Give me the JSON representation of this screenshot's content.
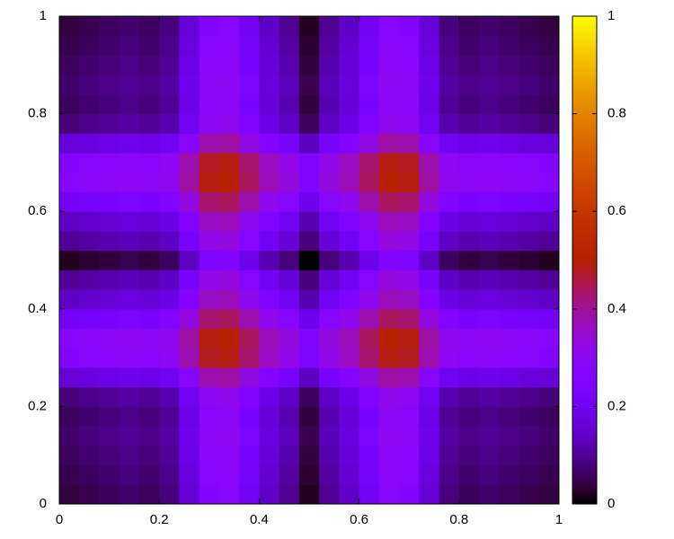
{
  "chart_data": {
    "type": "heatmap",
    "colormap": "gnuplot",
    "xlim": [
      0,
      1
    ],
    "ylim": [
      0,
      1
    ],
    "xticks": [
      0,
      0.2,
      0.4,
      0.6,
      0.8,
      1
    ],
    "yticks": [
      0,
      0.2,
      0.4,
      0.6,
      0.8,
      1
    ],
    "zlim": [
      0,
      1
    ],
    "zticks": [
      0,
      0.2,
      0.4,
      0.6,
      0.8,
      1
    ],
    "z": [
      [
        0.04,
        0.05,
        0.06,
        0.07,
        0.06,
        0.08,
        0.16,
        0.26,
        0.27,
        0.21,
        0.14,
        0.1,
        0.02,
        0.1,
        0.14,
        0.21,
        0.27,
        0.26,
        0.16,
        0.08,
        0.06,
        0.07,
        0.06,
        0.05,
        0.04
      ],
      [
        0.05,
        0.06,
        0.07,
        0.08,
        0.07,
        0.09,
        0.17,
        0.27,
        0.28,
        0.22,
        0.15,
        0.11,
        0.03,
        0.11,
        0.15,
        0.22,
        0.28,
        0.27,
        0.17,
        0.09,
        0.07,
        0.08,
        0.07,
        0.06,
        0.05
      ],
      [
        0.06,
        0.07,
        0.08,
        0.09,
        0.08,
        0.1,
        0.18,
        0.28,
        0.29,
        0.23,
        0.16,
        0.12,
        0.04,
        0.12,
        0.16,
        0.23,
        0.29,
        0.28,
        0.18,
        0.1,
        0.08,
        0.09,
        0.08,
        0.07,
        0.06
      ],
      [
        0.07,
        0.08,
        0.09,
        0.1,
        0.09,
        0.11,
        0.19,
        0.29,
        0.3,
        0.24,
        0.17,
        0.13,
        0.05,
        0.13,
        0.17,
        0.24,
        0.3,
        0.29,
        0.19,
        0.11,
        0.09,
        0.1,
        0.09,
        0.08,
        0.07
      ],
      [
        0.06,
        0.07,
        0.08,
        0.09,
        0.08,
        0.1,
        0.18,
        0.28,
        0.29,
        0.23,
        0.16,
        0.12,
        0.04,
        0.12,
        0.16,
        0.23,
        0.29,
        0.28,
        0.18,
        0.1,
        0.08,
        0.09,
        0.08,
        0.07,
        0.06
      ],
      [
        0.08,
        0.09,
        0.1,
        0.11,
        0.1,
        0.12,
        0.2,
        0.3,
        0.31,
        0.25,
        0.18,
        0.14,
        0.06,
        0.14,
        0.18,
        0.25,
        0.31,
        0.3,
        0.2,
        0.12,
        0.1,
        0.11,
        0.1,
        0.09,
        0.08
      ],
      [
        0.16,
        0.17,
        0.18,
        0.19,
        0.18,
        0.2,
        0.28,
        0.38,
        0.39,
        0.33,
        0.26,
        0.22,
        0.14,
        0.22,
        0.26,
        0.33,
        0.39,
        0.38,
        0.28,
        0.2,
        0.18,
        0.19,
        0.18,
        0.17,
        0.16
      ],
      [
        0.26,
        0.27,
        0.28,
        0.29,
        0.28,
        0.3,
        0.38,
        0.48,
        0.49,
        0.43,
        0.36,
        0.32,
        0.24,
        0.32,
        0.36,
        0.43,
        0.49,
        0.48,
        0.38,
        0.3,
        0.28,
        0.29,
        0.28,
        0.27,
        0.26
      ],
      [
        0.27,
        0.28,
        0.29,
        0.3,
        0.29,
        0.31,
        0.39,
        0.49,
        0.5,
        0.44,
        0.37,
        0.33,
        0.25,
        0.33,
        0.37,
        0.44,
        0.5,
        0.49,
        0.39,
        0.31,
        0.29,
        0.3,
        0.29,
        0.28,
        0.27
      ],
      [
        0.21,
        0.22,
        0.23,
        0.24,
        0.23,
        0.25,
        0.33,
        0.43,
        0.44,
        0.38,
        0.31,
        0.27,
        0.19,
        0.27,
        0.31,
        0.38,
        0.44,
        0.43,
        0.33,
        0.25,
        0.23,
        0.24,
        0.23,
        0.22,
        0.21
      ],
      [
        0.14,
        0.15,
        0.16,
        0.17,
        0.16,
        0.18,
        0.26,
        0.36,
        0.37,
        0.31,
        0.24,
        0.2,
        0.12,
        0.2,
        0.24,
        0.31,
        0.37,
        0.36,
        0.26,
        0.18,
        0.16,
        0.17,
        0.16,
        0.15,
        0.14
      ],
      [
        0.1,
        0.11,
        0.12,
        0.13,
        0.12,
        0.14,
        0.22,
        0.32,
        0.33,
        0.27,
        0.2,
        0.16,
        0.08,
        0.16,
        0.2,
        0.27,
        0.33,
        0.32,
        0.22,
        0.14,
        0.12,
        0.13,
        0.12,
        0.11,
        0.1
      ],
      [
        0.02,
        0.03,
        0.04,
        0.05,
        0.04,
        0.06,
        0.14,
        0.24,
        0.25,
        0.19,
        0.12,
        0.08,
        0.0,
        0.08,
        0.12,
        0.19,
        0.25,
        0.24,
        0.14,
        0.06,
        0.04,
        0.05,
        0.04,
        0.03,
        0.02
      ],
      [
        0.1,
        0.11,
        0.12,
        0.13,
        0.12,
        0.14,
        0.22,
        0.32,
        0.33,
        0.27,
        0.2,
        0.16,
        0.08,
        0.16,
        0.2,
        0.27,
        0.33,
        0.32,
        0.22,
        0.14,
        0.12,
        0.13,
        0.12,
        0.11,
        0.1
      ],
      [
        0.14,
        0.15,
        0.16,
        0.17,
        0.16,
        0.18,
        0.26,
        0.36,
        0.37,
        0.31,
        0.24,
        0.2,
        0.12,
        0.2,
        0.24,
        0.31,
        0.37,
        0.36,
        0.26,
        0.18,
        0.16,
        0.17,
        0.16,
        0.15,
        0.14
      ],
      [
        0.21,
        0.22,
        0.23,
        0.24,
        0.23,
        0.25,
        0.33,
        0.43,
        0.44,
        0.38,
        0.31,
        0.27,
        0.19,
        0.27,
        0.31,
        0.38,
        0.44,
        0.43,
        0.33,
        0.25,
        0.23,
        0.24,
        0.23,
        0.22,
        0.21
      ],
      [
        0.27,
        0.28,
        0.29,
        0.3,
        0.29,
        0.31,
        0.39,
        0.49,
        0.5,
        0.44,
        0.37,
        0.33,
        0.25,
        0.33,
        0.37,
        0.44,
        0.5,
        0.49,
        0.39,
        0.31,
        0.29,
        0.3,
        0.29,
        0.28,
        0.27
      ],
      [
        0.26,
        0.27,
        0.28,
        0.29,
        0.28,
        0.3,
        0.38,
        0.48,
        0.49,
        0.43,
        0.36,
        0.32,
        0.24,
        0.32,
        0.36,
        0.43,
        0.49,
        0.48,
        0.38,
        0.3,
        0.28,
        0.29,
        0.28,
        0.27,
        0.26
      ],
      [
        0.16,
        0.17,
        0.18,
        0.19,
        0.18,
        0.2,
        0.28,
        0.38,
        0.39,
        0.33,
        0.26,
        0.22,
        0.14,
        0.22,
        0.26,
        0.33,
        0.39,
        0.38,
        0.28,
        0.2,
        0.18,
        0.19,
        0.18,
        0.17,
        0.16
      ],
      [
        0.08,
        0.09,
        0.1,
        0.11,
        0.1,
        0.12,
        0.2,
        0.3,
        0.31,
        0.25,
        0.18,
        0.14,
        0.06,
        0.14,
        0.18,
        0.25,
        0.31,
        0.3,
        0.2,
        0.12,
        0.1,
        0.11,
        0.1,
        0.09,
        0.08
      ],
      [
        0.06,
        0.07,
        0.08,
        0.09,
        0.08,
        0.1,
        0.18,
        0.28,
        0.29,
        0.23,
        0.16,
        0.12,
        0.04,
        0.12,
        0.16,
        0.23,
        0.29,
        0.28,
        0.18,
        0.1,
        0.08,
        0.09,
        0.08,
        0.07,
        0.06
      ],
      [
        0.07,
        0.08,
        0.09,
        0.1,
        0.09,
        0.11,
        0.19,
        0.29,
        0.3,
        0.24,
        0.17,
        0.13,
        0.05,
        0.13,
        0.17,
        0.24,
        0.3,
        0.29,
        0.19,
        0.11,
        0.09,
        0.1,
        0.09,
        0.08,
        0.07
      ],
      [
        0.06,
        0.07,
        0.08,
        0.09,
        0.08,
        0.1,
        0.18,
        0.28,
        0.29,
        0.23,
        0.16,
        0.12,
        0.04,
        0.12,
        0.16,
        0.23,
        0.29,
        0.28,
        0.18,
        0.1,
        0.08,
        0.09,
        0.08,
        0.07,
        0.06
      ],
      [
        0.05,
        0.06,
        0.07,
        0.08,
        0.07,
        0.09,
        0.17,
        0.27,
        0.28,
        0.22,
        0.15,
        0.11,
        0.03,
        0.11,
        0.15,
        0.22,
        0.28,
        0.27,
        0.17,
        0.09,
        0.07,
        0.08,
        0.07,
        0.06,
        0.05
      ],
      [
        0.04,
        0.05,
        0.06,
        0.07,
        0.06,
        0.08,
        0.16,
        0.26,
        0.27,
        0.21,
        0.14,
        0.1,
        0.02,
        0.1,
        0.14,
        0.21,
        0.27,
        0.26,
        0.16,
        0.08,
        0.06,
        0.07,
        0.06,
        0.05,
        0.04
      ]
    ]
  }
}
